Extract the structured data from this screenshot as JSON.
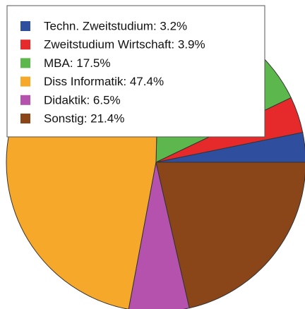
{
  "chart_data": {
    "type": "pie",
    "categories": [
      "Techn. Zweitstudium: 3.2%",
      "Zweitstudium Wirtschaft: 3.9%",
      "MBA: 17.5%",
      "Diss Informatik: 47.4%",
      "Didaktik: 6.5%",
      "Sonstig: 21.4%"
    ],
    "values": [
      3.2,
      3.9,
      17.5,
      47.4,
      6.5,
      21.4
    ],
    "colors": [
      "#2f4f9e",
      "#e62a2c",
      "#5cb84c",
      "#f5a82a",
      "#b552ae",
      "#8a4518"
    ],
    "start_angle": 0,
    "direction": "counterclockwise",
    "legend": "upper left"
  }
}
